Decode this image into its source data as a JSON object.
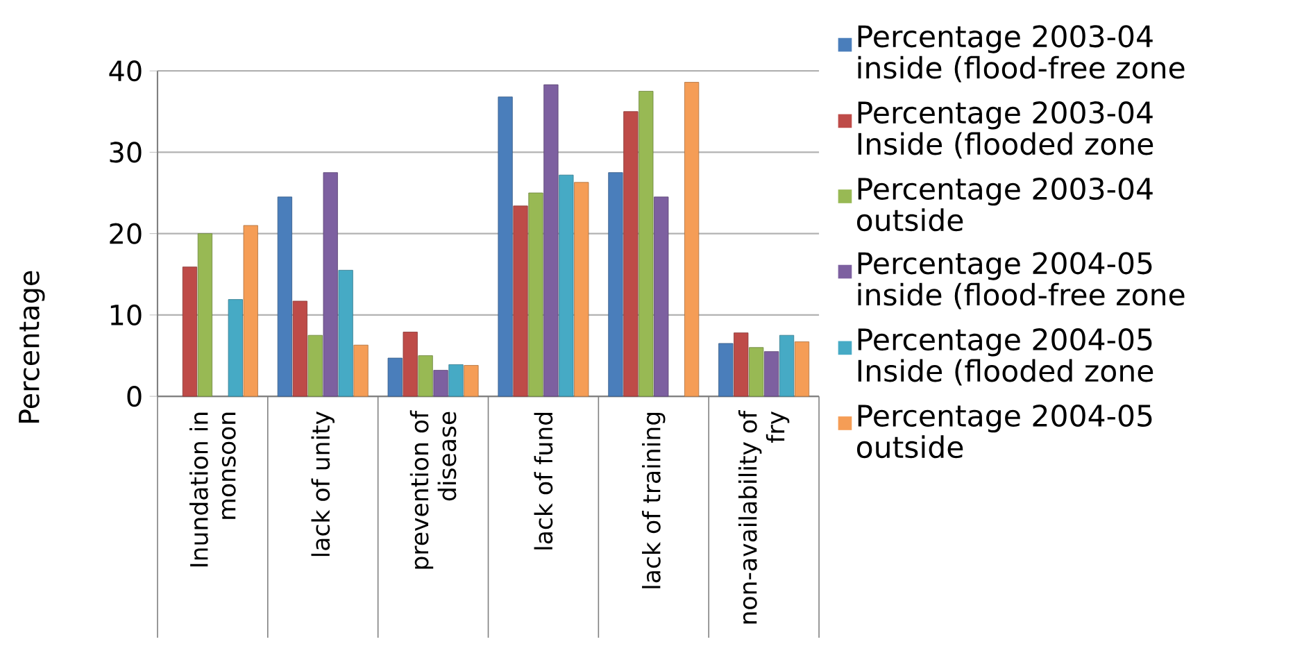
{
  "chart_data": {
    "type": "bar",
    "ylabel": "Percentage",
    "categories": [
      "Inundation in monsoon",
      "lack of unity",
      "prevention of disease",
      "lack of fund",
      "lack of training",
      "non-availability of fry"
    ],
    "series": [
      {
        "name": "Percentage 2003-04 inside (flood-free zone",
        "color": "#4a7ebb",
        "values": [
          null,
          24.5,
          4.7,
          36.8,
          27.5,
          6.5
        ]
      },
      {
        "name": "Percentage 2003-04 Inside (flooded zone",
        "color": "#be4b48",
        "values": [
          15.9,
          11.7,
          7.9,
          23.4,
          35,
          7.8
        ]
      },
      {
        "name": "Percentage 2003-04 outside",
        "color": "#98b954",
        "values": [
          20,
          7.5,
          5,
          25,
          37.5,
          6
        ]
      },
      {
        "name": "Percentage 2004-05 inside (flood-free zone",
        "color": "#7d60a0",
        "values": [
          null,
          27.5,
          3.2,
          38.3,
          24.5,
          5.5
        ]
      },
      {
        "name": "Percentage 2004-05 Inside (flooded zone",
        "color": "#46aac5",
        "values": [
          11.9,
          15.5,
          3.9,
          27.2,
          null,
          7.5
        ]
      },
      {
        "name": "Percentage 2004-05 outside",
        "color": "#f59d56",
        "values": [
          21,
          6.3,
          3.8,
          26.3,
          38.6,
          6.7
        ]
      }
    ],
    "ylim": [
      0,
      40
    ],
    "yticks": [
      0,
      10,
      20,
      30,
      40
    ],
    "grid": "y",
    "legend": "right"
  }
}
